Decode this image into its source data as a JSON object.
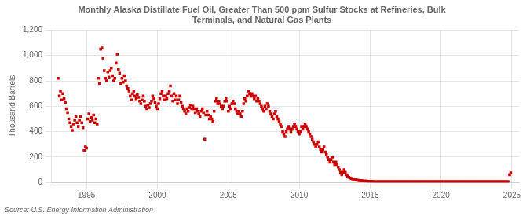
{
  "chart_data": {
    "type": "scatter",
    "title": "Monthly Alaska Distillate Fuel Oil, Greater Than 500 ppm Sulfur Stocks at Refineries, Bulk\nTerminals, and Natural Gas Plants",
    "ylabel": "Thousand Barrels",
    "annotation": "Source: U.S. Energy Information Administration",
    "color": "#cc0000",
    "marker": "square",
    "grid": true,
    "xlim": [
      1992.5,
      2025.5
    ],
    "xticks": [
      1995,
      2000,
      2005,
      2010,
      2015,
      2020,
      2025
    ],
    "ylim": [
      0,
      1200
    ],
    "yticks": [
      0,
      200,
      400,
      600,
      800,
      {
        "value": 1000,
        "label": "1,000"
      },
      {
        "value": 1200,
        "label": "1,200"
      }
    ],
    "x": [
      1993.0,
      1993.083,
      1993.167,
      1993.25,
      1993.333,
      1993.417,
      1993.5,
      1993.583,
      1993.667,
      1993.75,
      1993.833,
      1993.917,
      1994.0,
      1994.083,
      1994.167,
      1994.25,
      1994.333,
      1994.417,
      1994.5,
      1994.583,
      1994.667,
      1994.75,
      1994.833,
      1994.917,
      1995.0,
      1995.083,
      1995.167,
      1995.25,
      1995.333,
      1995.417,
      1995.5,
      1995.583,
      1995.667,
      1995.75,
      1995.833,
      1995.917,
      1996.0,
      1996.083,
      1996.167,
      1996.25,
      1996.333,
      1996.417,
      1996.5,
      1996.583,
      1996.667,
      1996.75,
      1996.833,
      1996.917,
      1997.0,
      1997.083,
      1997.167,
      1997.25,
      1997.333,
      1997.417,
      1997.5,
      1997.583,
      1997.667,
      1997.75,
      1997.833,
      1997.917,
      1998.0,
      1998.083,
      1998.167,
      1998.25,
      1998.333,
      1998.417,
      1998.5,
      1998.583,
      1998.667,
      1998.75,
      1998.833,
      1998.917,
      1999.0,
      1999.083,
      1999.167,
      1999.25,
      1999.333,
      1999.417,
      1999.5,
      1999.583,
      1999.667,
      1999.75,
      1999.833,
      1999.917,
      2000.0,
      2000.083,
      2000.167,
      2000.25,
      2000.333,
      2000.417,
      2000.5,
      2000.583,
      2000.667,
      2000.75,
      2000.833,
      2000.917,
      2001.0,
      2001.083,
      2001.167,
      2001.25,
      2001.333,
      2001.417,
      2001.5,
      2001.583,
      2001.667,
      2001.75,
      2001.833,
      2001.917,
      2002.0,
      2002.083,
      2002.167,
      2002.25,
      2002.333,
      2002.417,
      2002.5,
      2002.583,
      2002.667,
      2002.75,
      2002.833,
      2002.917,
      2003.0,
      2003.083,
      2003.167,
      2003.25,
      2003.333,
      2003.417,
      2003.5,
      2003.583,
      2003.667,
      2003.75,
      2003.833,
      2003.917,
      2004.0,
      2004.083,
      2004.167,
      2004.25,
      2004.333,
      2004.417,
      2004.5,
      2004.583,
      2004.667,
      2004.75,
      2004.833,
      2004.917,
      2005.0,
      2005.083,
      2005.167,
      2005.25,
      2005.333,
      2005.417,
      2005.5,
      2005.583,
      2005.667,
      2005.75,
      2005.833,
      2005.917,
      2006.0,
      2006.083,
      2006.167,
      2006.25,
      2006.333,
      2006.417,
      2006.5,
      2006.583,
      2006.667,
      2006.75,
      2006.833,
      2006.917,
      2007.0,
      2007.083,
      2007.167,
      2007.25,
      2007.333,
      2007.417,
      2007.5,
      2007.583,
      2007.667,
      2007.75,
      2007.833,
      2007.917,
      2008.0,
      2008.083,
      2008.167,
      2008.25,
      2008.333,
      2008.417,
      2008.5,
      2008.583,
      2008.667,
      2008.75,
      2008.833,
      2008.917,
      2009.0,
      2009.083,
      2009.167,
      2009.25,
      2009.333,
      2009.417,
      2009.5,
      2009.583,
      2009.667,
      2009.75,
      2009.833,
      2009.917,
      2010.0,
      2010.083,
      2010.167,
      2010.25,
      2010.333,
      2010.417,
      2010.5,
      2010.583,
      2010.667,
      2010.75,
      2010.833,
      2010.917,
      2011.0,
      2011.083,
      2011.167,
      2011.25,
      2011.333,
      2011.417,
      2011.5,
      2011.583,
      2011.667,
      2011.75,
      2011.833,
      2011.917,
      2012.0,
      2012.083,
      2012.167,
      2012.25,
      2012.333,
      2012.417,
      2012.5,
      2012.583,
      2012.667,
      2012.75,
      2012.833,
      2012.917,
      2013.0,
      2013.083,
      2013.167,
      2013.25,
      2013.333,
      2013.417,
      2013.5,
      2013.583,
      2013.667,
      2013.75,
      2013.833,
      2013.917,
      2014.0,
      2014.083,
      2014.167,
      2014.25,
      2014.333,
      2014.417,
      2014.5,
      2014.583,
      2014.667,
      2014.75,
      2014.833,
      2014.917,
      2015.0,
      2015.083,
      2015.167,
      2015.25,
      2015.333,
      2015.417,
      2015.5,
      2015.583,
      2015.667,
      2015.75,
      2015.833,
      2015.917,
      2016.0,
      2016.083,
      2016.167,
      2016.25,
      2016.333,
      2016.417,
      2016.5,
      2016.583,
      2016.667,
      2016.75,
      2016.833,
      2016.917,
      2017.0,
      2017.083,
      2017.167,
      2017.25,
      2017.333,
      2017.417,
      2017.5,
      2017.583,
      2017.667,
      2017.75,
      2017.833,
      2017.917,
      2018.0,
      2018.083,
      2018.167,
      2018.25,
      2018.333,
      2018.417,
      2018.5,
      2018.583,
      2018.667,
      2018.75,
      2018.833,
      2018.917,
      2019.0,
      2019.083,
      2019.167,
      2019.25,
      2019.333,
      2019.417,
      2019.5,
      2019.583,
      2019.667,
      2019.75,
      2019.833,
      2019.917,
      2020.0,
      2020.083,
      2020.167,
      2020.25,
      2020.333,
      2020.417,
      2020.5,
      2020.583,
      2020.667,
      2020.75,
      2020.833,
      2020.917,
      2021.0,
      2021.083,
      2021.167,
      2021.25,
      2021.333,
      2021.417,
      2021.5,
      2021.583,
      2021.667,
      2021.75,
      2021.833,
      2021.917,
      2022.0,
      2022.083,
      2022.167,
      2022.25,
      2022.333,
      2022.417,
      2022.5,
      2022.583,
      2022.667,
      2022.75,
      2022.833,
      2022.917,
      2023.0,
      2023.083,
      2023.167,
      2023.25,
      2023.333,
      2023.417,
      2023.5,
      2023.583,
      2023.667,
      2023.75,
      2023.833,
      2023.917,
      2024.0,
      2024.083,
      2024.167,
      2024.25,
      2024.333,
      2024.417,
      2024.5,
      2024.583,
      2024.667,
      2024.75,
      2024.833,
      2024.917
    ],
    "values": [
      820,
      680,
      720,
      650,
      700,
      660,
      630,
      580,
      550,
      500,
      470,
      440,
      410,
      460,
      490,
      520,
      470,
      440,
      490,
      520,
      470,
      430,
      250,
      280,
      270,
      500,
      540,
      480,
      510,
      490,
      530,
      470,
      500,
      460,
      820,
      780,
      1050,
      1060,
      980,
      880,
      820,
      800,
      870,
      830,
      880,
      900,
      840,
      800,
      820,
      940,
      1010,
      890,
      860,
      780,
      820,
      790,
      840,
      800,
      760,
      740,
      720,
      680,
      650,
      700,
      720,
      680,
      660,
      690,
      670,
      640,
      620,
      650,
      680,
      640,
      600,
      580,
      610,
      590,
      620,
      640,
      680,
      660,
      630,
      600,
      580,
      620,
      660,
      700,
      720,
      680,
      650,
      680,
      660,
      700,
      720,
      760,
      680,
      640,
      700,
      650,
      680,
      620,
      650,
      680,
      630,
      600,
      580,
      560,
      540,
      580,
      560,
      590,
      610,
      580,
      600,
      580,
      550,
      580,
      560,
      540,
      520,
      560,
      580,
      550,
      340,
      530,
      560,
      530,
      500,
      520,
      500,
      480,
      560,
      640,
      660,
      620,
      640,
      620,
      600,
      580,
      600,
      640,
      660,
      640,
      560,
      600,
      580,
      620,
      640,
      620,
      580,
      560,
      540,
      560,
      540,
      520,
      560,
      620,
      660,
      640,
      680,
      720,
      700,
      680,
      700,
      680,
      660,
      680,
      640,
      660,
      640,
      620,
      600,
      580,
      560,
      600,
      580,
      620,
      600,
      560,
      540,
      520,
      500,
      540,
      560,
      520,
      500,
      480,
      460,
      440,
      400,
      380,
      360,
      400,
      420,
      440,
      420,
      400,
      420,
      440,
      460,
      440,
      420,
      400,
      380,
      400,
      440,
      420,
      440,
      460,
      440,
      420,
      400,
      380,
      360,
      340,
      320,
      300,
      280,
      300,
      320,
      280,
      260,
      240,
      260,
      280,
      240,
      220,
      200,
      180,
      160,
      180,
      200,
      160,
      140,
      160,
      140,
      120,
      100,
      80,
      60,
      80,
      100,
      80,
      60,
      50,
      40,
      35,
      30,
      28,
      25,
      22,
      20,
      18,
      16,
      15,
      14,
      13,
      12,
      11,
      10,
      10,
      9,
      8,
      8,
      7,
      7,
      6,
      6,
      6,
      5,
      5,
      5,
      5,
      5,
      5,
      5,
      5,
      5,
      5,
      5,
      5,
      5,
      5,
      5,
      5,
      5,
      5,
      5,
      5,
      5,
      5,
      5,
      5,
      5,
      5,
      5,
      5,
      5,
      5,
      5,
      5,
      5,
      5,
      5,
      5,
      5,
      5,
      5,
      5,
      5,
      5,
      5,
      5,
      5,
      5,
      5,
      5,
      5,
      5,
      5,
      5,
      5,
      5,
      5,
      5,
      5,
      5,
      5,
      5,
      5,
      5,
      5,
      5,
      5,
      5,
      5,
      5,
      5,
      5,
      5,
      5,
      5,
      5,
      5,
      5,
      5,
      5,
      5,
      5,
      5,
      5,
      5,
      5,
      5,
      5,
      5,
      5,
      5,
      5,
      5,
      5,
      5,
      5,
      5,
      5,
      5,
      5,
      5,
      5,
      5,
      5,
      5,
      5,
      5,
      5,
      5,
      5,
      5,
      5,
      5,
      5,
      60,
      75
    ]
  }
}
